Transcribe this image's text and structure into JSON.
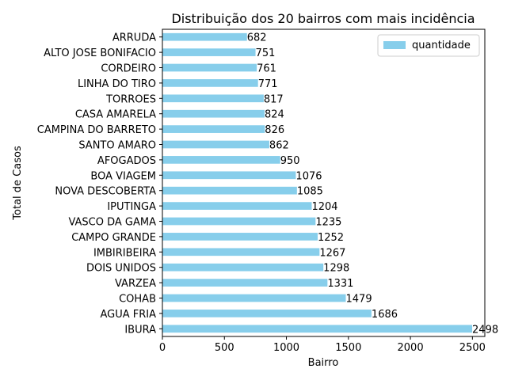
{
  "chart_data": {
    "type": "bar",
    "orientation": "horizontal",
    "title": "Distribuição dos 20 bairros com mais incidência",
    "xlabel": "Bairro",
    "ylabel": "Total de Casos",
    "categories": [
      "IBURA",
      "AGUA FRIA",
      "COHAB",
      "VARZEA",
      "DOIS UNIDOS",
      "IMBIRIBEIRA",
      "CAMPO GRANDE",
      "VASCO DA GAMA",
      "IPUTINGA",
      "NOVA DESCOBERTA",
      "BOA VIAGEM",
      "AFOGADOS",
      "SANTO AMARO",
      "CAMPINA DO BARRETO",
      "CASA AMARELA",
      "TORROES",
      "LINHA DO TIRO",
      "CORDEIRO",
      "ALTO JOSE BONIFACIO",
      "ARRUDA"
    ],
    "series": [
      {
        "name": "quantidade",
        "values": [
          2498,
          1686,
          1479,
          1331,
          1298,
          1267,
          1252,
          1235,
          1204,
          1085,
          1076,
          950,
          862,
          826,
          824,
          817,
          771,
          761,
          751,
          682
        ]
      }
    ],
    "xlim": [
      0,
      2600
    ],
    "xticks": [
      0,
      500,
      1000,
      1500,
      2000,
      2500
    ],
    "grid": false,
    "legend": "top-right",
    "colors": {
      "bar": "#87ceeb",
      "axis": "#000000"
    }
  }
}
